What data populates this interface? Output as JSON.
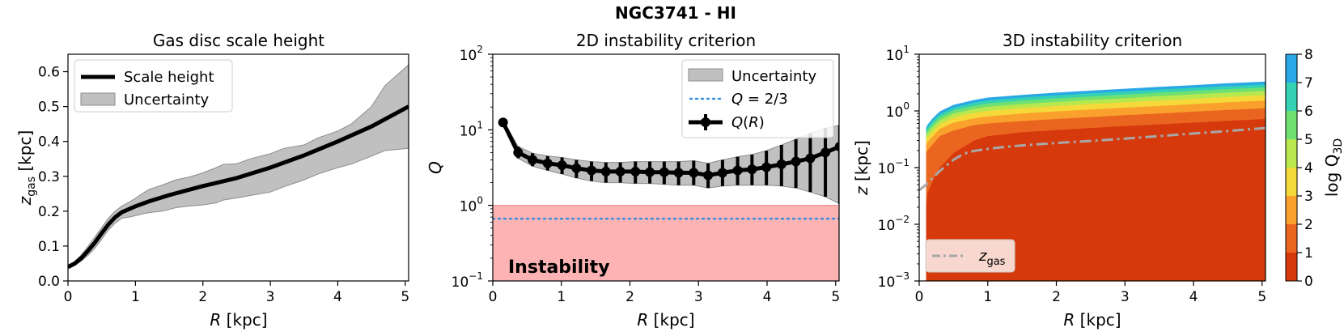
{
  "suptitle": "NGC3741 - HI",
  "colors": {
    "mean_line": "#000000",
    "band": "#c0c0c0",
    "band_edge": "#8c8c8c",
    "threshold_line": "#3d8ee0",
    "instability_fill": "#fdb3b3",
    "instability_text": "#ff0000",
    "zgas_line": "#a8a8a8",
    "levels": [
      "#d63a0c",
      "#ea6520",
      "#f9a12c",
      "#f5d93a",
      "#b8e84e",
      "#6fe072",
      "#34d1b4",
      "#2aa8e6"
    ]
  },
  "chart_data": [
    {
      "type": "line",
      "title": "Gas disc scale height",
      "xlabel": "R [kpc]",
      "ylabel": "z_gas [kpc]",
      "xlim": [
        0,
        5.05
      ],
      "ylim": [
        0,
        0.65
      ],
      "xticks": [
        "0",
        "1",
        "2",
        "3",
        "4",
        "5"
      ],
      "yticks": [
        "0.0",
        "0.1",
        "0.2",
        "0.3",
        "0.4",
        "0.5",
        "0.6"
      ],
      "legend": {
        "location": "upper-left",
        "entries": [
          "Scale height",
          "Uncertainty"
        ]
      },
      "series": [
        {
          "name": "Scale height",
          "x": [
            0,
            0.1,
            0.2,
            0.3,
            0.4,
            0.5,
            0.6,
            0.7,
            0.8,
            1.0,
            1.2,
            1.5,
            2.0,
            2.5,
            3.0,
            3.5,
            4.0,
            4.5,
            5.05
          ],
          "y": [
            0.04,
            0.05,
            0.066,
            0.087,
            0.11,
            0.137,
            0.162,
            0.183,
            0.197,
            0.214,
            0.228,
            0.246,
            0.272,
            0.295,
            0.325,
            0.36,
            0.4,
            0.443,
            0.5
          ]
        },
        {
          "name": "Uncertainty",
          "x": [
            0,
            0.1,
            0.2,
            0.3,
            0.4,
            0.5,
            0.6,
            0.7,
            0.8,
            0.9,
            1.0,
            1.1,
            1.2,
            1.4,
            1.6,
            1.8,
            2.0,
            2.2,
            2.3,
            2.5,
            2.7,
            3.0,
            3.2,
            3.5,
            3.7,
            4.0,
            4.2,
            4.5,
            4.7,
            5.05
          ],
          "upper": [
            0.045,
            0.056,
            0.075,
            0.1,
            0.126,
            0.153,
            0.18,
            0.2,
            0.215,
            0.225,
            0.237,
            0.25,
            0.262,
            0.275,
            0.29,
            0.298,
            0.31,
            0.325,
            0.334,
            0.336,
            0.35,
            0.365,
            0.38,
            0.39,
            0.41,
            0.43,
            0.45,
            0.5,
            0.56,
            0.62
          ],
          "lower": [
            0.035,
            0.044,
            0.057,
            0.074,
            0.094,
            0.12,
            0.146,
            0.166,
            0.18,
            0.183,
            0.187,
            0.192,
            0.196,
            0.2,
            0.21,
            0.215,
            0.218,
            0.224,
            0.232,
            0.238,
            0.245,
            0.255,
            0.27,
            0.29,
            0.306,
            0.325,
            0.335,
            0.358,
            0.374,
            0.38
          ]
        }
      ]
    },
    {
      "type": "line",
      "title": "2D instability criterion",
      "xlabel": "R [kpc]",
      "ylabel": "Q",
      "yscale": "log",
      "xlim": [
        0,
        5.05
      ],
      "ylim": [
        0.1,
        100
      ],
      "xticks": [
        "0",
        "1",
        "2",
        "3",
        "4",
        "5"
      ],
      "yticks": [
        "10",
        "10",
        "10",
        "10"
      ],
      "ytick_exponents": [
        "−1",
        "0",
        "1",
        "2"
      ],
      "legend": {
        "location": "upper-right",
        "entries": [
          "Uncertainty",
          "Q = 2/3",
          "Q(R)"
        ]
      },
      "threshold": 0.6667,
      "instability_region": {
        "ymin": 0.1,
        "ymax": 1.0,
        "label": "Instability"
      },
      "series": [
        {
          "name": "Q(R)",
          "x": [
            0.15,
            0.37,
            0.58,
            0.8,
            1.01,
            1.22,
            1.44,
            1.65,
            1.86,
            2.08,
            2.29,
            2.5,
            2.71,
            2.93,
            3.14,
            3.35,
            3.57,
            3.78,
            3.99,
            4.21,
            4.42,
            4.63,
            4.85,
            5.06
          ],
          "y": [
            12.5,
            5.0,
            4.0,
            3.6,
            3.4,
            3.1,
            2.9,
            2.8,
            2.8,
            2.8,
            2.75,
            2.75,
            2.7,
            2.7,
            2.5,
            2.7,
            2.9,
            3.0,
            3.2,
            3.5,
            3.8,
            4.2,
            5.0,
            6.0
          ],
          "err_low": [
            11.5,
            4.2,
            3.3,
            2.9,
            2.6,
            2.3,
            2.1,
            2.0,
            2.0,
            1.95,
            1.95,
            1.9,
            1.85,
            1.85,
            1.7,
            1.8,
            1.85,
            1.85,
            1.85,
            1.8,
            1.7,
            1.5,
            1.3,
            1.05
          ],
          "err_high": [
            13.5,
            6.0,
            4.9,
            4.5,
            4.3,
            4.0,
            3.8,
            3.7,
            3.7,
            3.8,
            3.8,
            3.8,
            3.8,
            3.9,
            3.6,
            4.0,
            4.4,
            4.7,
            5.3,
            6.3,
            7.5,
            9.0,
            10.5,
            11.5
          ]
        },
        {
          "name": "Uncertainty",
          "x": [
            0.15,
            0.37,
            0.58,
            0.8,
            1.01,
            1.22,
            1.44,
            1.65,
            1.86,
            2.08,
            2.29,
            2.5,
            2.71,
            2.93,
            3.14,
            3.35,
            3.57,
            3.78,
            3.99,
            4.21,
            4.42,
            4.63,
            4.85,
            5.06
          ],
          "upper": [
            13.5,
            6.0,
            4.9,
            4.5,
            4.3,
            4.0,
            3.8,
            3.7,
            3.7,
            3.8,
            3.8,
            3.8,
            3.8,
            3.9,
            3.6,
            4.0,
            4.4,
            4.7,
            5.3,
            6.3,
            7.5,
            9.0,
            10.5,
            11.5
          ],
          "lower": [
            11.5,
            4.2,
            3.3,
            2.9,
            2.6,
            2.3,
            2.1,
            2.0,
            2.0,
            1.95,
            1.95,
            1.9,
            1.85,
            1.85,
            1.7,
            1.8,
            1.85,
            1.85,
            1.85,
            1.8,
            1.7,
            1.5,
            1.3,
            1.05
          ]
        }
      ]
    },
    {
      "type": "area",
      "title": "3D instability criterion",
      "xlabel": "R [kpc]",
      "ylabel": "z [kpc]",
      "yscale": "log",
      "xlim": [
        0,
        5.05
      ],
      "ylim": [
        0.001,
        10
      ],
      "xticks": [
        "0",
        "1",
        "2",
        "3",
        "4",
        "5"
      ],
      "yticks": [
        "10",
        "10",
        "10",
        "10",
        "10"
      ],
      "ytick_exponents": [
        "−3",
        "−2",
        "−1",
        "0",
        "1"
      ],
      "legend": {
        "location": "lower-left",
        "entries": [
          "z_gas"
        ]
      },
      "boundary_x": [
        0.1,
        0.12,
        0.2,
        0.3,
        0.5,
        0.8,
        1.0,
        1.5,
        2.0,
        2.5,
        3.0,
        3.5,
        4.0,
        4.5,
        5.05
      ],
      "level_tops": [
        [
          0.02,
          0.035,
          0.06,
          0.1,
          0.18,
          0.3,
          0.36,
          0.42,
          0.46,
          0.5,
          0.54,
          0.58,
          0.62,
          0.67,
          0.72
        ],
        [
          0.18,
          0.2,
          0.26,
          0.36,
          0.45,
          0.56,
          0.6,
          0.66,
          0.72,
          0.78,
          0.84,
          0.9,
          0.97,
          1.04,
          1.12
        ],
        [
          0.25,
          0.28,
          0.36,
          0.48,
          0.62,
          0.74,
          0.8,
          0.9,
          0.98,
          1.06,
          1.14,
          1.22,
          1.32,
          1.42,
          1.52
        ],
        [
          0.31,
          0.34,
          0.44,
          0.58,
          0.76,
          0.92,
          1.0,
          1.12,
          1.22,
          1.32,
          1.42,
          1.52,
          1.64,
          1.76,
          1.9
        ],
        [
          0.36,
          0.4,
          0.52,
          0.68,
          0.9,
          1.08,
          1.18,
          1.32,
          1.44,
          1.56,
          1.68,
          1.82,
          1.96,
          2.1,
          2.26
        ],
        [
          0.41,
          0.46,
          0.6,
          0.78,
          1.02,
          1.24,
          1.36,
          1.52,
          1.66,
          1.8,
          1.94,
          2.1,
          2.26,
          2.42,
          2.6
        ],
        [
          0.46,
          0.52,
          0.68,
          0.88,
          1.14,
          1.4,
          1.54,
          1.72,
          1.88,
          2.04,
          2.2,
          2.38,
          2.56,
          2.74,
          2.94
        ],
        [
          0.5,
          0.57,
          0.75,
          0.98,
          1.28,
          1.56,
          1.72,
          1.92,
          2.1,
          2.28,
          2.46,
          2.66,
          2.86,
          3.08,
          3.3
        ]
      ],
      "zgas": {
        "name": "z_gas",
        "x": [
          0,
          0.1,
          0.2,
          0.3,
          0.4,
          0.5,
          0.6,
          0.7,
          0.8,
          1.0,
          1.2,
          1.5,
          2.0,
          2.5,
          3.0,
          3.5,
          4.0,
          4.5,
          5.05
        ],
        "y": [
          0.04,
          0.05,
          0.066,
          0.087,
          0.11,
          0.137,
          0.162,
          0.183,
          0.197,
          0.214,
          0.228,
          0.246,
          0.272,
          0.295,
          0.325,
          0.36,
          0.4,
          0.443,
          0.5
        ]
      },
      "colorbar": {
        "label": "log Q",
        "label_sub": "3D",
        "ticks": [
          "0",
          "1",
          "2",
          "3",
          "4",
          "5",
          "6",
          "7",
          "8"
        ],
        "range": [
          0,
          8
        ]
      }
    }
  ]
}
